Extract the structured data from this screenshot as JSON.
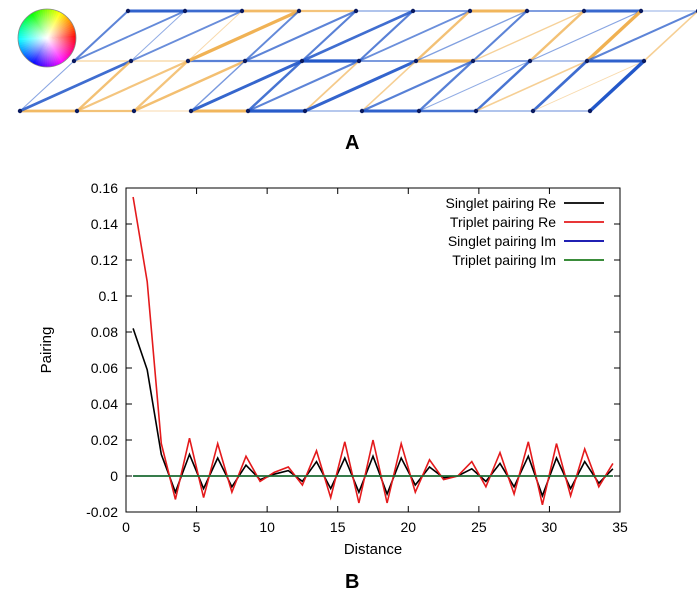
{
  "panel_a": {
    "label": "A",
    "lattice": {
      "columns": 11,
      "rows": 2,
      "colors": {
        "blue": "#1f55c8",
        "orange": "#f0b050",
        "dot": "#0a1a60",
        "node_fill": "#ffffff"
      }
    }
  },
  "panel_b": {
    "label": "B"
  },
  "chart_data": {
    "type": "line",
    "xlabel": "Distance",
    "ylabel": "Pairing",
    "xlim": [
      0,
      35
    ],
    "ylim": [
      -0.02,
      0.16
    ],
    "xticks": [
      0,
      5,
      10,
      15,
      20,
      25,
      30,
      35
    ],
    "yticks": [
      -0.02,
      0,
      0.02,
      0.04,
      0.06,
      0.08,
      0.1,
      0.12,
      0.14,
      0.16
    ],
    "ytick_labels": [
      "-0.02",
      "0",
      "0.02",
      "0.04",
      "0.06",
      "0.08",
      "0.1",
      "0.12",
      "0.14",
      "0.16"
    ],
    "grid": false,
    "legend_position": "top-right",
    "x": [
      0.5,
      1.5,
      2.5,
      3.5,
      4.5,
      5.5,
      6.5,
      7.5,
      8.5,
      9.5,
      10.5,
      11.5,
      12.5,
      13.5,
      14.5,
      15.5,
      16.5,
      17.5,
      18.5,
      19.5,
      20.5,
      21.5,
      22.5,
      23.5,
      24.5,
      25.5,
      26.5,
      27.5,
      28.5,
      29.5,
      30.5,
      31.5,
      32.5,
      33.5,
      34.5
    ],
    "series": [
      {
        "name": "Singlet pairing Re",
        "color": "#000000",
        "values": [
          0.082,
          0.059,
          0.012,
          -0.009,
          0.012,
          -0.007,
          0.01,
          -0.006,
          0.006,
          -0.002,
          0.001,
          0.003,
          -0.003,
          0.008,
          -0.007,
          0.01,
          -0.009,
          0.011,
          -0.01,
          0.01,
          -0.005,
          0.005,
          -0.001,
          0.0,
          0.004,
          -0.003,
          0.007,
          -0.006,
          0.011,
          -0.011,
          0.01,
          -0.007,
          0.008,
          -0.004,
          0.004
        ]
      },
      {
        "name": "Triplet pairing Re",
        "color": "#e41a1c",
        "values": [
          0.155,
          0.108,
          0.018,
          -0.013,
          0.021,
          -0.012,
          0.018,
          -0.009,
          0.011,
          -0.003,
          0.002,
          0.005,
          -0.005,
          0.014,
          -0.012,
          0.019,
          -0.015,
          0.02,
          -0.015,
          0.018,
          -0.009,
          0.009,
          -0.002,
          0.0,
          0.008,
          -0.006,
          0.013,
          -0.01,
          0.019,
          -0.016,
          0.018,
          -0.011,
          0.015,
          -0.006,
          0.007
        ]
      },
      {
        "name": "Singlet pairing Im",
        "color": "#0000a8",
        "values": [
          0,
          0,
          0,
          0,
          0,
          0,
          0,
          0,
          0,
          0,
          0,
          0,
          0,
          0,
          0,
          0,
          0,
          0,
          0,
          0,
          0,
          0,
          0,
          0,
          0,
          0,
          0,
          0,
          0,
          0,
          0,
          0,
          0,
          0,
          0
        ]
      },
      {
        "name": "Triplet pairing Im",
        "color": "#1e7b1e",
        "values": [
          0,
          0,
          0,
          0,
          0,
          0,
          0,
          0,
          0,
          0,
          0,
          0,
          0,
          0,
          0,
          0,
          0,
          0,
          0,
          0,
          0,
          0,
          0,
          0,
          0,
          0,
          0,
          0,
          0,
          0,
          0,
          0,
          0,
          0,
          0
        ]
      }
    ]
  }
}
